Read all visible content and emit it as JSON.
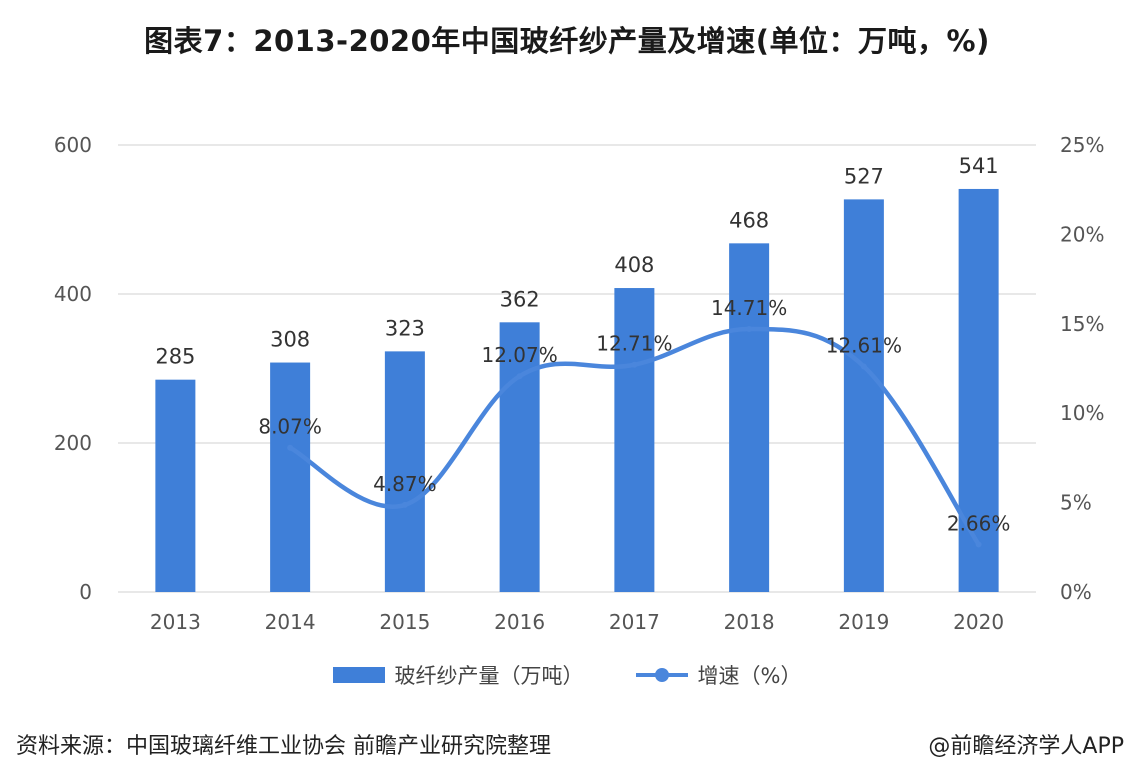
{
  "title": "图表7：2013-2020年中国玻纤纱产量及增速(单位：万吨，%)",
  "colors": {
    "bar": "#3f7fd8",
    "line": "#4a86dc",
    "grid": "#d9d9d9",
    "axis_text": "#555555"
  },
  "chart_data": {
    "type": "bar",
    "categories": [
      "2013",
      "2014",
      "2015",
      "2016",
      "2017",
      "2018",
      "2019",
      "2020"
    ],
    "series": [
      {
        "name": "玻纤纱产量（万吨）",
        "type": "bar",
        "axis": "left",
        "values": [
          285,
          308,
          323,
          362,
          408,
          468,
          527,
          541
        ],
        "labels": [
          "285",
          "308",
          "323",
          "362",
          "408",
          "468",
          "527",
          "541"
        ]
      },
      {
        "name": "增速（%）",
        "type": "line",
        "axis": "right",
        "values": [
          null,
          8.07,
          4.87,
          12.07,
          12.71,
          14.71,
          12.61,
          2.66
        ],
        "labels": [
          null,
          "8.07%",
          "4.87%",
          "12.07%",
          "12.71%",
          "14.71%",
          "12.61%",
          "2.66%"
        ]
      }
    ],
    "y_left": {
      "ylim": [
        0,
        600
      ],
      "ticks": [
        "0",
        "200",
        "400",
        "600"
      ],
      "tick_values": [
        0,
        200,
        400,
        600
      ]
    },
    "y_right": {
      "ylim": [
        0,
        25
      ],
      "ticks": [
        "0%",
        "5%",
        "10%",
        "15%",
        "20%",
        "25%"
      ],
      "tick_values": [
        0,
        5,
        10,
        15,
        20,
        25
      ]
    },
    "grid": true,
    "legend_position": "bottom"
  },
  "legend": {
    "bar_label": "玻纤纱产量（万吨）",
    "line_label": "增速（%）"
  },
  "footer": {
    "source": "资料来源：中国玻璃纤维工业协会 前瞻产业研究院整理",
    "credit": "@前瞻经济学人APP"
  }
}
